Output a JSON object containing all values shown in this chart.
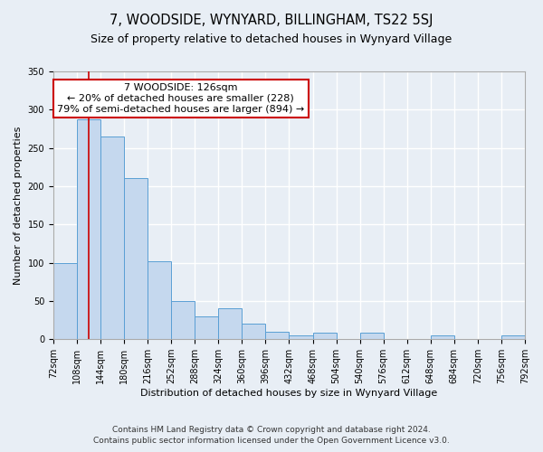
{
  "title": "7, WOODSIDE, WYNYARD, BILLINGHAM, TS22 5SJ",
  "subtitle": "Size of property relative to detached houses in Wynyard Village",
  "xlabel": "Distribution of detached houses by size in Wynyard Village",
  "ylabel": "Number of detached properties",
  "footnote1": "Contains HM Land Registry data © Crown copyright and database right 2024.",
  "footnote2": "Contains public sector information licensed under the Open Government Licence v3.0.",
  "bin_edges": [
    72,
    108,
    144,
    180,
    216,
    252,
    288,
    324,
    360,
    396,
    432,
    468,
    504,
    540,
    576,
    612,
    648,
    684,
    720,
    756,
    792
  ],
  "bar_heights": [
    100,
    287,
    265,
    210,
    102,
    50,
    30,
    40,
    20,
    10,
    5,
    8,
    0,
    8,
    0,
    0,
    5,
    0,
    0,
    5
  ],
  "bar_color": "#c5d8ee",
  "bar_edge_color": "#5a9fd4",
  "property_size": 126,
  "vline_color": "#cc0000",
  "annotation_text": "7 WOODSIDE: 126sqm\n← 20% of detached houses are smaller (228)\n79% of semi-detached houses are larger (894) →",
  "annotation_box_color": "#ffffff",
  "annotation_border_color": "#cc0000",
  "ylim": [
    0,
    350
  ],
  "yticks": [
    0,
    50,
    100,
    150,
    200,
    250,
    300,
    350
  ],
  "bg_color": "#e8eef5",
  "plot_bg_color": "#e8eef5",
  "grid_color": "#ffffff",
  "title_fontsize": 10.5,
  "subtitle_fontsize": 9,
  "label_fontsize": 8,
  "tick_fontsize": 7,
  "footnote_fontsize": 6.5,
  "annot_fontsize": 8
}
